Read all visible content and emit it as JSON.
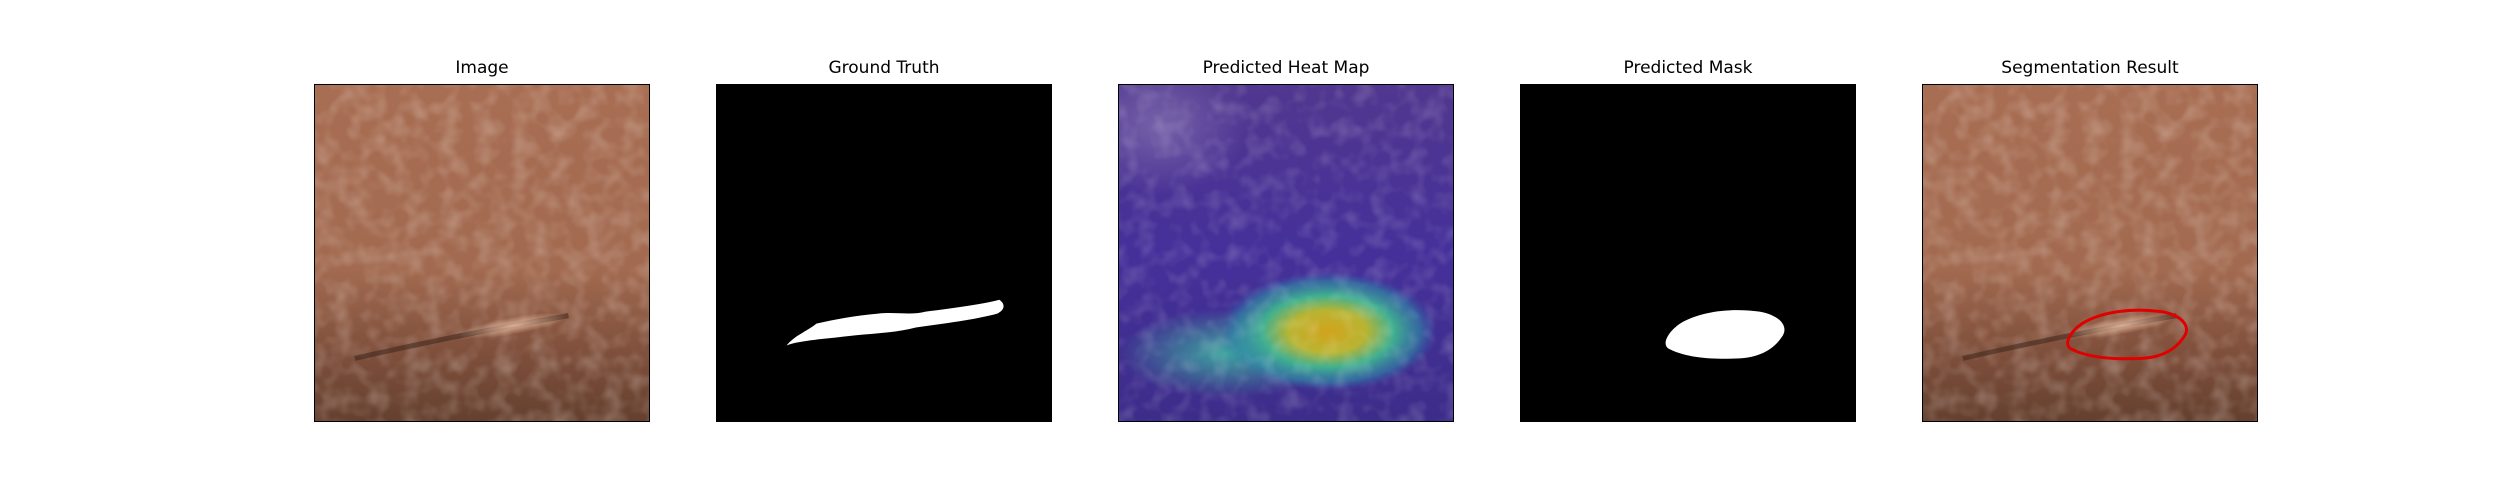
{
  "figure": {
    "panels": [
      {
        "key": "image",
        "title": "Image"
      },
      {
        "key": "ground_truth",
        "title": "Ground Truth"
      },
      {
        "key": "heatmap",
        "title": "Predicted Heat Map"
      },
      {
        "key": "mask",
        "title": "Predicted Mask"
      },
      {
        "key": "segmentation",
        "title": "Segmentation Result"
      }
    ]
  },
  "colors": {
    "leather": "#a96f52",
    "leather_dark": "#5e3a2b",
    "mask_bg": "#000000",
    "mask_fg": "#ffffff",
    "heat_low": "#46308c",
    "heat_mid": "#2aa79b",
    "heat_high": "#d1a62a",
    "contour": "#e00000"
  }
}
